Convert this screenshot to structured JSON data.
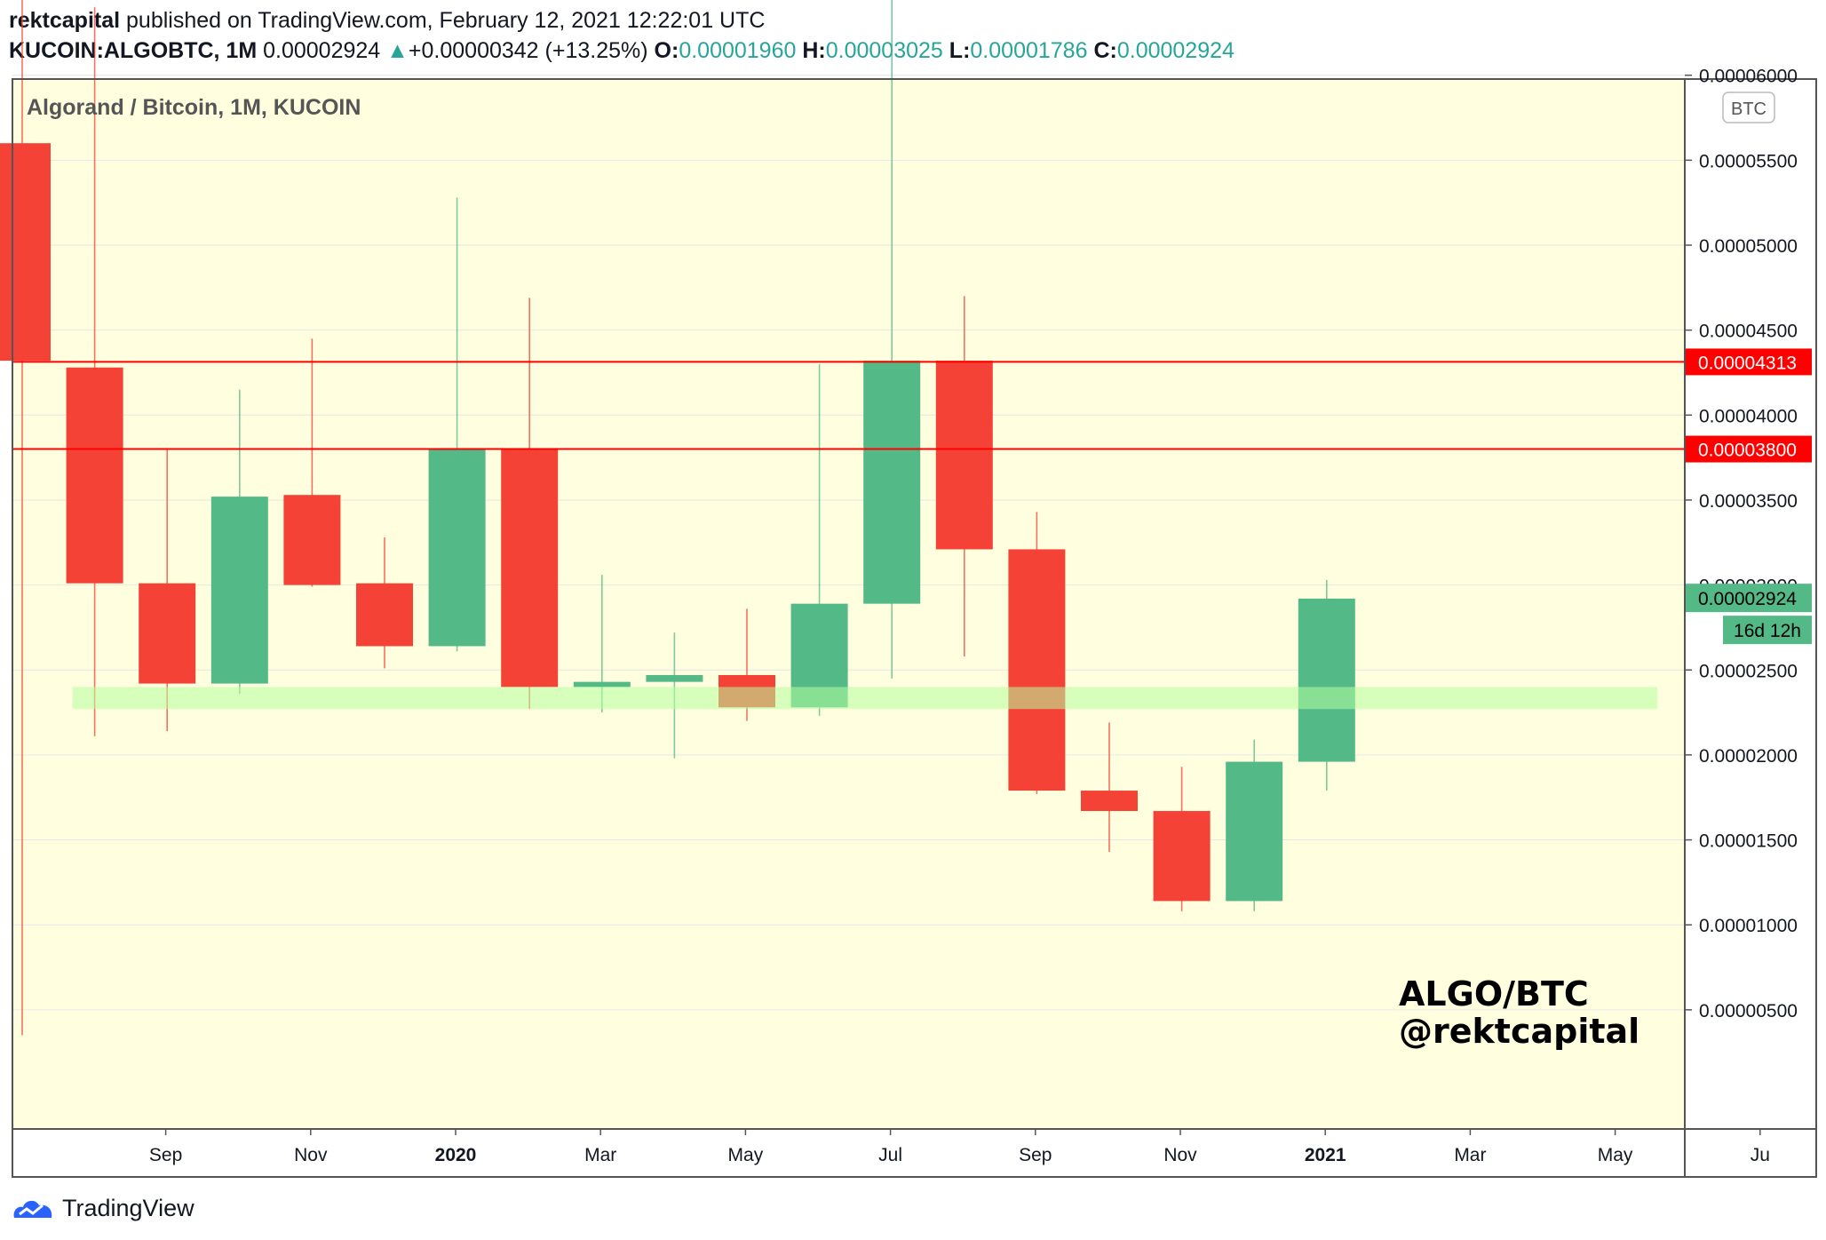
{
  "header": {
    "author": "rektcapital",
    "published_text": "published on TradingView.com, February 12, 2021 12:22:01 UTC",
    "symbol": "KUCOIN:ALGOBTC, 1M",
    "last": "0.00002924",
    "change_arrow": "▲",
    "change": "+0.00000342 (+13.25%)",
    "o_label": "O:",
    "o": "0.00001960",
    "h_label": "H:",
    "h": "0.00003025",
    "l_label": "L:",
    "l": "0.00001786",
    "c_label": "C:",
    "c": "0.00002924"
  },
  "chart_data": {
    "type": "candlestick",
    "title": "Algorand / Bitcoin, 1M, KUCOIN",
    "currency_badge": "BTC",
    "y_range": [
      2.5e-06,
      6.8e-05
    ],
    "y_ticks": [
      "0.00000500",
      "0.00001000",
      "0.00001500",
      "0.00002000",
      "0.00002500",
      "0.00003000",
      "0.00003500",
      "0.00004000",
      "0.00004500",
      "0.00005000",
      "0.00005500",
      "0.00006000"
    ],
    "x_labels": [
      {
        "label": "Sep",
        "bold": false,
        "i": 1
      },
      {
        "label": "Nov",
        "bold": false,
        "i": 3
      },
      {
        "label": "2020",
        "bold": true,
        "i": 5
      },
      {
        "label": "Mar",
        "bold": false,
        "i": 7
      },
      {
        "label": "May",
        "bold": false,
        "i": 9
      },
      {
        "label": "Jul",
        "bold": false,
        "i": 11
      },
      {
        "label": "Sep",
        "bold": false,
        "i": 13
      },
      {
        "label": "Nov",
        "bold": false,
        "i": 15
      },
      {
        "label": "2021",
        "bold": true,
        "i": 17
      },
      {
        "label": "Mar",
        "bold": false,
        "i": 19
      },
      {
        "label": "May",
        "bold": false,
        "i": 21
      },
      {
        "label": "Ju",
        "bold": false,
        "i": 23
      }
    ],
    "candles": [
      {
        "period": "2019-08",
        "o": 5.6e-05,
        "h": 7e-05,
        "l": 3.5e-06,
        "c": 4.32e-05
      },
      {
        "period": "2019-09",
        "o": 4.28e-05,
        "h": 6.4e-05,
        "l": 2.11e-05,
        "c": 3.01e-05
      },
      {
        "period": "2019-10",
        "o": 3.01e-05,
        "h": 3.8e-05,
        "l": 2.14e-05,
        "c": 2.42e-05
      },
      {
        "period": "2019-11",
        "o": 2.42e-05,
        "h": 4.15e-05,
        "l": 2.36e-05,
        "c": 3.52e-05
      },
      {
        "period": "2019-12",
        "o": 3.53e-05,
        "h": 4.45e-05,
        "l": 2.99e-05,
        "c": 3e-05
      },
      {
        "period": "2020-01",
        "o": 3.01e-05,
        "h": 3.28e-05,
        "l": 2.51e-05,
        "c": 2.64e-05
      },
      {
        "period": "2020-02",
        "o": 2.64e-05,
        "h": 5.28e-05,
        "l": 2.61e-05,
        "c": 3.8e-05
      },
      {
        "period": "2020-03",
        "o": 3.8e-05,
        "h": 4.69e-05,
        "l": 2.27e-05,
        "c": 2.4e-05
      },
      {
        "period": "2020-04",
        "o": 2.4e-05,
        "h": 3.06e-05,
        "l": 2.25e-05,
        "c": 2.43e-05
      },
      {
        "period": "2020-05",
        "o": 2.43e-05,
        "h": 2.72e-05,
        "l": 1.98e-05,
        "c": 2.47e-05
      },
      {
        "period": "2020-06",
        "o": 2.47e-05,
        "h": 2.86e-05,
        "l": 2.2e-05,
        "c": 2.28e-05
      },
      {
        "period": "2020-07",
        "o": 2.28e-05,
        "h": 4.3e-05,
        "l": 2.23e-05,
        "c": 2.89e-05
      },
      {
        "period": "2020-08",
        "o": 2.89e-05,
        "h": 6.8e-05,
        "l": 2.45e-05,
        "c": 4.32e-05
      },
      {
        "period": "2020-09",
        "o": 4.32e-05,
        "h": 4.7e-05,
        "l": 2.58e-05,
        "c": 3.21e-05
      },
      {
        "period": "2020-10",
        "o": 3.21e-05,
        "h": 3.43e-05,
        "l": 1.77e-05,
        "c": 1.79e-05
      },
      {
        "period": "2020-11",
        "o": 1.79e-05,
        "h": 2.19e-05,
        "l": 1.43e-05,
        "c": 1.67e-05
      },
      {
        "period": "2020-12",
        "o": 1.67e-05,
        "h": 1.93e-05,
        "l": 1.08e-05,
        "c": 1.14e-05
      },
      {
        "period": "2021-01",
        "o": 1.14e-05,
        "h": 2.09e-05,
        "l": 1.08e-05,
        "c": 1.96e-05
      },
      {
        "period": "2021-02",
        "o": 1.96e-05,
        "h": 3.03e-05,
        "l": 1.79e-05,
        "c": 2.92e-05
      }
    ],
    "horizontal_lines": [
      {
        "value": 4.313e-05,
        "label": "0.00004313",
        "color": "#ff0000"
      },
      {
        "value": 3.8e-05,
        "label": "0.00003800",
        "color": "#ff0000"
      }
    ],
    "support_zone": {
      "low": 2.27e-05,
      "high": 2.4e-05,
      "from_i": 1,
      "to_i": 22,
      "color": "#b6ff9e"
    },
    "current_price": {
      "value": 2.924e-05,
      "label": "0.00002924",
      "countdown": "16d 12h",
      "color": "#53b987"
    },
    "annotation": {
      "line1": "ALGO/BTC",
      "line2": "@rektcapital"
    },
    "colors": {
      "up": "#53b987",
      "down": "#f44336",
      "background": "#ffffe0",
      "grid": "#e6e6e6"
    }
  },
  "footer": {
    "brand": "TradingView"
  }
}
